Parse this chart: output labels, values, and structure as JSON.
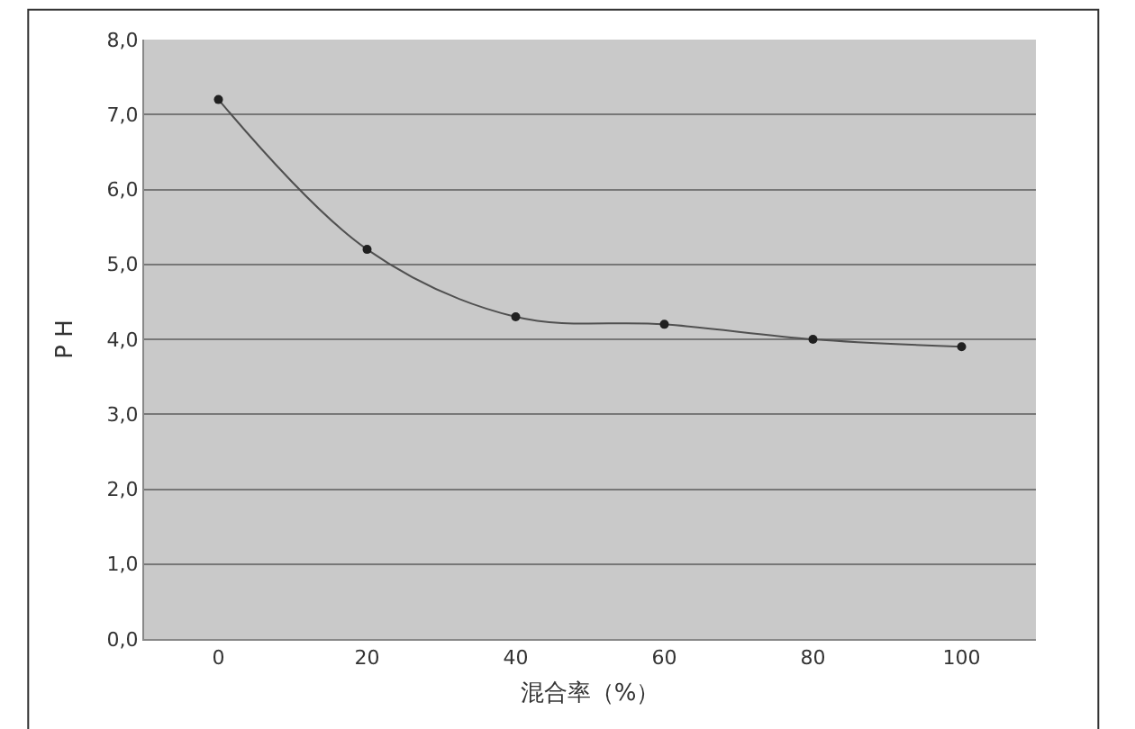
{
  "chart_data": {
    "type": "line",
    "xlabel": "混合率（%）",
    "ylabel": "P H",
    "categories": [
      "0",
      "20",
      "40",
      "60",
      "80",
      "100"
    ],
    "series": [
      {
        "color": "#505050",
        "values": [
          7.2,
          5.2,
          4.3,
          4.2,
          4.0,
          3.9
        ]
      }
    ],
    "ylim": [
      0,
      8
    ],
    "yticks": [
      {
        "value": 0,
        "label": "0,0"
      },
      {
        "value": 1,
        "label": "1,0"
      },
      {
        "value": 2,
        "label": "2,0"
      },
      {
        "value": 3,
        "label": "3,0"
      },
      {
        "value": 4,
        "label": "4,0"
      },
      {
        "value": 5,
        "label": "5,0"
      },
      {
        "value": 6,
        "label": "6,0"
      },
      {
        "value": 7,
        "label": "7,0"
      },
      {
        "value": 8,
        "label": "8,0"
      }
    ],
    "grid": "y",
    "marker": "circle",
    "line_style": "solid",
    "legend": false
  }
}
